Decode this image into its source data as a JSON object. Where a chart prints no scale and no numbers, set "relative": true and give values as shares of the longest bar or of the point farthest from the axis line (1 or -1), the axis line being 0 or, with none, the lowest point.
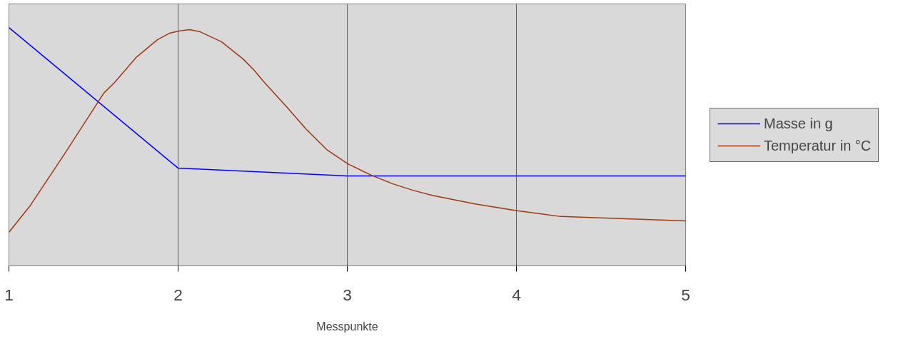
{
  "chart_data": {
    "type": "line",
    "relative": true,
    "xlabel": "Messpunkte",
    "xlim": [
      1,
      5
    ],
    "xticks": [
      1,
      2,
      3,
      4,
      5
    ],
    "grid": "x",
    "legend": "right",
    "tick_labels": "x",
    "marker": "none",
    "line_style": "solid",
    "series": [
      {
        "name": "Masse in g",
        "color": "#0000ff",
        "x": [
          1,
          2,
          3,
          4,
          5
        ],
        "values": [
          1.0,
          0.41,
          0.377,
          0.377,
          0.377
        ]
      },
      {
        "name": "Temperatur in °C",
        "color": "#a0380f",
        "x": [
          1,
          1.127,
          1.329,
          1.561,
          1.624,
          1.751,
          1.878,
          1.949,
          2.004,
          2.068,
          2.131,
          2.257,
          2.384,
          2.447,
          2.511,
          2.637,
          2.755,
          2.878,
          3.004,
          3.143,
          3.27,
          3.388,
          3.502,
          3.755,
          4.004,
          4.262,
          5
        ],
        "values": [
          0.141,
          0.254,
          0.47,
          0.725,
          0.769,
          0.874,
          0.949,
          0.976,
          0.985,
          0.991,
          0.982,
          0.94,
          0.868,
          0.823,
          0.769,
          0.671,
          0.575,
          0.488,
          0.428,
          0.38,
          0.344,
          0.317,
          0.296,
          0.26,
          0.231,
          0.207,
          0.189
        ]
      }
    ]
  }
}
